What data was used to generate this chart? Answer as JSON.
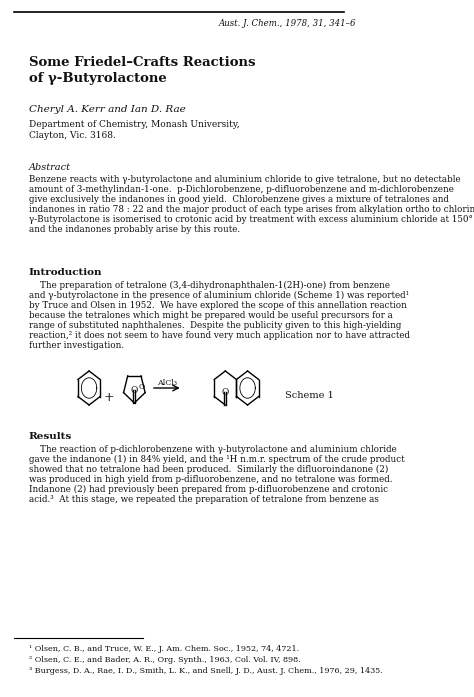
{
  "header_right": "Aust. J. Chem., 1978, 31, 341–6",
  "title_line1": "Some Friedel–Crafts Reactions",
  "title_line2": "of γ-Butyrolactone",
  "authors": "Cheryl A. Kerr and Ian D. Rae",
  "affiliation1": "Department of Chemistry, Monash University,",
  "affiliation2": "Clayton, Vic. 3168.",
  "abstract_heading": "Abstract",
  "abstract_text": "Benzene reacts with γ-butyrolactone and aluminium chloride to give tetralone, but no detectable\namount of 3-methylindan-1-one.  p-Dichlorobenzene, p-difluorobenzene and m-dichlorobenzene\ngive exclusively the indanones in good yield.  Chlorobenzene gives a mixture of tetralones and\nindanones in ratio 78 : 22 and the major product of each type arises from alkylation ortho to chlorine.\nγ-Butyrolactone is isomerised to crotonic acid by treatment with excess aluminium chloride at 150°\nand the indanones probably arise by this route.",
  "intro_heading": "Introduction",
  "intro_text": "The preparation of tetralone (3,4-dihydronaphthalen-1(2H)-one) from benzene\nand γ-butyrolactone in the presence of aluminium chloride (Scheme 1) was reported¹\nby Truce and Olsen in 1952.  We have explored the scope of this annellation reaction\nbecause the tetralones which might be prepared would be useful precursors for a\nrange of substituted naphthalenes.  Despite the publicity given to this high-yielding\nreaction,² it does not seem to have found very much application nor to have attracted\nfurther investigation.",
  "scheme_label": "Scheme 1",
  "results_heading": "Results",
  "results_text": "The reaction of p-dichlorobenzene with γ-butyrolactone and aluminium chloride\ngave the indanone (1) in 84% yield, and the ¹H n.m.r. spectrum of the crude product\nshowed that no tetralone had been produced.  Similarly the difluoroindanone (2)\nwas produced in high yield from p-difluorobenzene, and no tetralone was formed.\nIndanone (2) had previously been prepared from p-difluorobenzene and crotonic\nacid.³  At this stage, we repeated the preparation of tetralone from benzene as",
  "footnote1": "¹ Olsen, C. B., and Truce, W. E., J. Am. Chem. Soc., 1952, 74, 4721.",
  "footnote2": "² Olsen, C. E., and Bader, A. R., Org. Synth., 1963, Col. Vol. IV, 898.",
  "footnote3": "³ Burgess, D. A., Rae, I. D., Smith, L. K., and Snell, J. D., Aust. J. Chem., 1976, 29, 1435.",
  "bg_color": "#ffffff",
  "text_color": "#000000",
  "line_color": "#000000"
}
